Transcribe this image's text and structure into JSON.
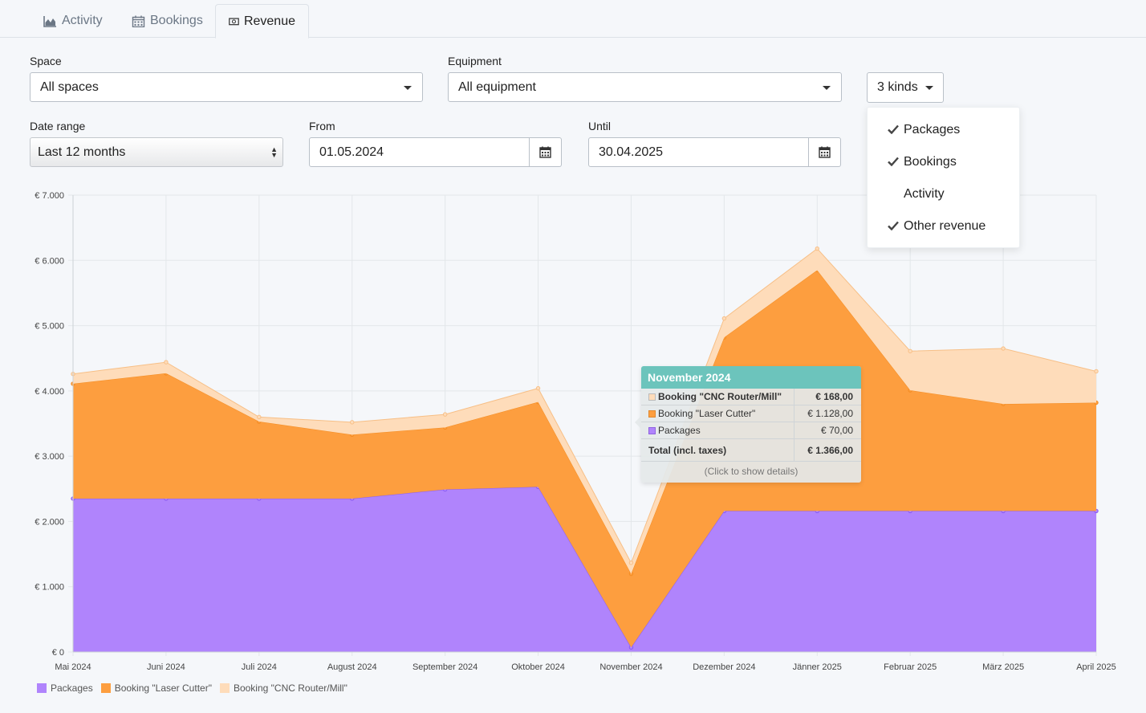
{
  "tabs": [
    {
      "label": "Activity",
      "icon": "area-chart-icon"
    },
    {
      "label": "Bookings",
      "icon": "calendar-icon"
    },
    {
      "label": "Revenue",
      "icon": "money-icon"
    }
  ],
  "filters": {
    "space_label": "Space",
    "space_value": "All spaces",
    "equipment_label": "Equipment",
    "equipment_value": "All equipment",
    "kinds_button": "3 kinds",
    "date_range_label": "Date range",
    "date_range_value": "Last 12 months",
    "from_label": "From",
    "from_value": "01.05.2024",
    "until_label": "Until",
    "until_value": "30.04.2025"
  },
  "kinds_menu": [
    {
      "label": "Packages",
      "checked": true
    },
    {
      "label": "Bookings",
      "checked": true
    },
    {
      "label": "Activity",
      "checked": false
    },
    {
      "label": "Other revenue",
      "checked": true
    }
  ],
  "tooltip": {
    "title": "November 2024",
    "rows": [
      {
        "name": "Booking \"CNC Router/Mill\"",
        "value": "€ 168,00",
        "color": "#fedcba",
        "bold": true
      },
      {
        "name": "Booking \"Laser Cutter\"",
        "value": "€ 1.128,00",
        "color": "#fd9e3f",
        "bold": false
      },
      {
        "name": "Packages",
        "value": "€ 70,00",
        "color": "#b084fc",
        "bold": false
      }
    ],
    "total_label": "Total (incl. taxes)",
    "total_value": "€ 1.366,00",
    "hint": "(Click to show details)"
  },
  "chart_data": {
    "type": "area",
    "stacked": true,
    "x": [
      "Mai 2024",
      "Juni 2024",
      "Juli 2024",
      "August 2024",
      "September 2024",
      "Oktober 2024",
      "November 2024",
      "Dezember 2024",
      "Jänner 2025",
      "Februar 2025",
      "März 2025",
      "April 2025"
    ],
    "series": [
      {
        "name": "Packages",
        "color": "#b084fc",
        "values": [
          2350,
          2350,
          2350,
          2350,
          2490,
          2530,
          70,
          2160,
          2160,
          2160,
          2160,
          2160
        ]
      },
      {
        "name": "Booking \"Laser Cutter\"",
        "color": "#fd9e3f",
        "values": [
          1760,
          1920,
          1180,
          980,
          950,
          1300,
          1128,
          2660,
          3690,
          1850,
          1640,
          1660
        ]
      },
      {
        "name": "Booking \"CNC Router/Mill\"",
        "color": "#fedcba",
        "values": [
          150,
          170,
          70,
          190,
          200,
          210,
          168,
          290,
          330,
          600,
          850,
          480
        ]
      }
    ],
    "ylim": [
      0,
      7000
    ],
    "yticks": [
      "€ 0",
      "€ 1.000",
      "€ 2.000",
      "€ 3.000",
      "€ 4.000",
      "€ 5.000",
      "€ 6.000",
      "€ 7.000"
    ],
    "grid": true,
    "legend": "bottom-left"
  }
}
